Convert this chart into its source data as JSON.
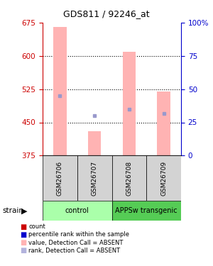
{
  "title": "GDS811 / 92246_at",
  "samples": [
    "GSM26706",
    "GSM26707",
    "GSM26708",
    "GSM26709"
  ],
  "ylim": [
    375,
    675
  ],
  "yticks_left": [
    375,
    450,
    525,
    600,
    675
  ],
  "yticks_right": [
    0,
    25,
    50,
    75,
    100
  ],
  "bar_bottom": 375,
  "pink_bar_values": [
    665,
    430,
    610,
    520
  ],
  "blue_dot_values": [
    510,
    465,
    480,
    470
  ],
  "bar_color": "#ffb3b3",
  "dot_color": "#9999cc",
  "left_axis_color": "#cc0000",
  "right_axis_color": "#0000cc",
  "sample_area_color": "#d3d3d3",
  "control_color": "#aaffaa",
  "transgenic_color": "#55cc55",
  "legend_items": [
    {
      "color": "#cc0000",
      "label": "count"
    },
    {
      "color": "#0000cc",
      "label": "percentile rank within the sample"
    },
    {
      "color": "#ffb3b3",
      "label": "value, Detection Call = ABSENT"
    },
    {
      "color": "#b3b3dd",
      "label": "rank, Detection Call = ABSENT"
    }
  ]
}
